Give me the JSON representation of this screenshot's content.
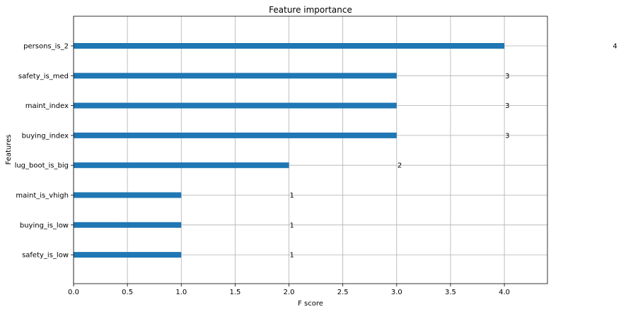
{
  "chart_data": {
    "type": "bar",
    "orientation": "horizontal",
    "title": "Feature importance",
    "xlabel": "F score",
    "ylabel": "Features",
    "categories": [
      "persons_is_2",
      "safety_is_med",
      "maint_index",
      "buying_index",
      "lug_boot_is_big",
      "maint_is_vhigh",
      "buying_is_low",
      "safety_is_low"
    ],
    "values": [
      4,
      3,
      3,
      3,
      2,
      1,
      1,
      1
    ],
    "data_labels": [
      "4",
      "3",
      "3",
      "3",
      "2",
      "1",
      "1",
      "1"
    ],
    "xlim": [
      0,
      4.4
    ],
    "xticks": [
      0.0,
      0.5,
      1.0,
      1.5,
      2.0,
      2.5,
      3.0,
      3.5,
      4.0
    ],
    "xtick_labels": [
      "0.0",
      "0.5",
      "1.0",
      "1.5",
      "2.0",
      "2.5",
      "3.0",
      "3.5",
      "4.0"
    ],
    "grid": true,
    "bar_color": "#1f77b4",
    "grid_color": "#b0b0b0"
  }
}
